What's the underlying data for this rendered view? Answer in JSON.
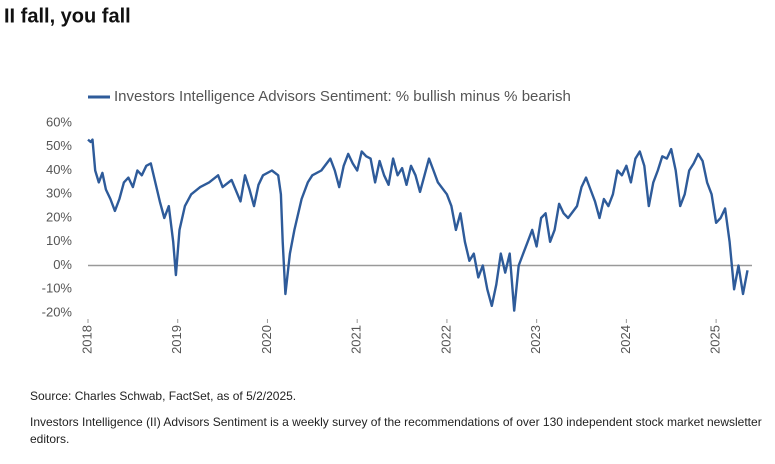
{
  "chart_data": {
    "type": "line",
    "title": "II fall, you fall",
    "source": "Source: Charles Schwab, FactSet, as of 5/2/2025.",
    "note": "Investors Intelligence (II) Advisors Sentiment is a weekly survey of the recommendations of over 130 independent stock market newsletter editors.",
    "xlim": [
      2018,
      2025.4
    ],
    "xticks": [
      2018,
      2019,
      2020,
      2021,
      2022,
      2023,
      2024,
      2025
    ],
    "ylim": [
      -20,
      60
    ],
    "yticks": [
      {
        "value": -20,
        "label": "-20%"
      },
      {
        "value": -10,
        "label": "-10%"
      },
      {
        "value": 0,
        "label": "0%"
      },
      {
        "value": 10,
        "label": "10%"
      },
      {
        "value": 20,
        "label": "20%"
      },
      {
        "value": 30,
        "label": "30%"
      },
      {
        "value": 40,
        "label": "40%"
      },
      {
        "value": 50,
        "label": "50%"
      },
      {
        "value": 60,
        "label": "60%"
      }
    ],
    "zero_line": true,
    "x": [
      2018.0,
      2018.03,
      2018.05,
      2018.08,
      2018.12,
      2018.16,
      2018.2,
      2018.25,
      2018.3,
      2018.35,
      2018.4,
      2018.45,
      2018.5,
      2018.55,
      2018.6,
      2018.65,
      2018.7,
      2018.75,
      2018.8,
      2018.85,
      2018.9,
      2018.95,
      2018.98,
      2019.02,
      2019.08,
      2019.15,
      2019.25,
      2019.35,
      2019.45,
      2019.5,
      2019.6,
      2019.7,
      2019.75,
      2019.8,
      2019.85,
      2019.9,
      2019.95,
      2020.05,
      2020.12,
      2020.15,
      2020.17,
      2020.2,
      2020.25,
      2020.3,
      2020.38,
      2020.45,
      2020.5,
      2020.6,
      2020.7,
      2020.75,
      2020.8,
      2020.85,
      2020.9,
      2020.95,
      2021.0,
      2021.05,
      2021.1,
      2021.15,
      2021.2,
      2021.25,
      2021.3,
      2021.35,
      2021.4,
      2021.45,
      2021.5,
      2021.55,
      2021.6,
      2021.65,
      2021.7,
      2021.75,
      2021.8,
      2021.85,
      2021.9,
      2022.0,
      2022.05,
      2022.1,
      2022.15,
      2022.2,
      2022.25,
      2022.3,
      2022.35,
      2022.4,
      2022.45,
      2022.5,
      2022.55,
      2022.6,
      2022.65,
      2022.7,
      2022.75,
      2022.8,
      2022.85,
      2022.9,
      2022.95,
      2023.0,
      2023.05,
      2023.1,
      2023.15,
      2023.2,
      2023.25,
      2023.3,
      2023.35,
      2023.45,
      2023.5,
      2023.55,
      2023.6,
      2023.65,
      2023.7,
      2023.75,
      2023.8,
      2023.85,
      2023.9,
      2023.95,
      2024.0,
      2024.05,
      2024.1,
      2024.15,
      2024.2,
      2024.25,
      2024.3,
      2024.35,
      2024.4,
      2024.45,
      2024.5,
      2024.55,
      2024.6,
      2024.65,
      2024.7,
      2024.75,
      2024.8,
      2024.85,
      2024.9,
      2024.95,
      2025.0,
      2025.05,
      2025.1,
      2025.15,
      2025.2,
      2025.25,
      2025.3,
      2025.35
    ],
    "series": [
      {
        "name": "Investors Intelligence Advisors Sentiment: % bullish minus % bearish",
        "color": "#2e5b9a",
        "values": [
          53,
          52,
          53,
          40,
          35,
          39,
          32,
          28,
          23,
          28,
          35,
          37,
          33,
          40,
          38,
          42,
          43,
          35,
          27,
          20,
          25,
          10,
          -4,
          15,
          25,
          30,
          33,
          35,
          38,
          33,
          36,
          27,
          38,
          32,
          25,
          34,
          38,
          40,
          38,
          30,
          10,
          -12,
          5,
          15,
          28,
          35,
          38,
          40,
          45,
          40,
          33,
          42,
          47,
          43,
          40,
          48,
          46,
          45,
          35,
          44,
          38,
          34,
          45,
          38,
          41,
          34,
          42,
          38,
          31,
          38,
          45,
          40,
          35,
          30,
          25,
          15,
          22,
          10,
          2,
          5,
          -5,
          0,
          -10,
          -17,
          -8,
          5,
          -3,
          5,
          -19,
          0,
          5,
          10,
          15,
          8,
          20,
          22,
          10,
          15,
          26,
          22,
          20,
          25,
          33,
          37,
          32,
          27,
          20,
          28,
          25,
          30,
          40,
          38,
          42,
          35,
          45,
          48,
          42,
          25,
          35,
          40,
          46,
          45,
          49,
          40,
          25,
          30,
          40,
          43,
          47,
          44,
          35,
          30,
          18,
          20,
          24,
          10,
          -10,
          0,
          -12,
          -2
        ]
      }
    ]
  }
}
